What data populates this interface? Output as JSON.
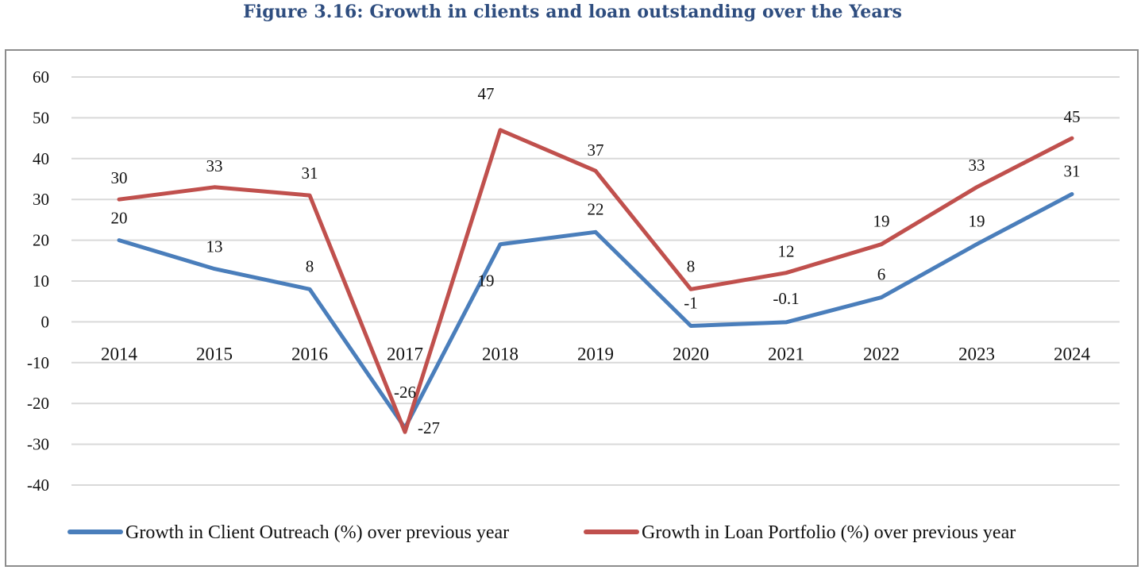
{
  "figure": {
    "title": "Figure 3.16: Growth in clients and loan outstanding over the Years"
  },
  "chart_data": {
    "type": "line",
    "title": "Figure 3.16: Growth in clients and loan outstanding over the Years",
    "xlabel": "",
    "ylabel": "",
    "ylim": [
      -40,
      60
    ],
    "yticks": [
      60,
      50,
      40,
      30,
      20,
      10,
      0,
      -10,
      -20,
      -30,
      -40
    ],
    "ytick_labels": [
      "60",
      "50",
      "40",
      "30",
      "20",
      "10",
      "0",
      "-10",
      "-20",
      "-30",
      "-40"
    ],
    "grid": true,
    "legend_position": "bottom",
    "categories": [
      "2014",
      "2015",
      "2016",
      "2017",
      "2018",
      "2019",
      "2020",
      "2021",
      "2022",
      "2023",
      "2024"
    ],
    "series": [
      {
        "name": "Growth in Client Outreach (%) over previous year",
        "color": "#4A7EBB",
        "values": [
          20,
          13,
          8,
          -26,
          19,
          22,
          -1,
          -0.1,
          6,
          19,
          31.3
        ],
        "labels": [
          "20",
          "13",
          "8",
          "-26",
          "19",
          "22",
          "-1",
          "-0.1",
          "6",
          "19",
          "31"
        ]
      },
      {
        "name": "Growth in Loan Portfolio (%) over previous year",
        "color": "#C0504D",
        "values": [
          30,
          33,
          31,
          -27,
          47,
          37,
          8,
          12,
          19,
          33,
          45
        ],
        "labels": [
          "30",
          "33",
          "31",
          "-27",
          "47",
          "37",
          "8",
          "12",
          "19",
          "33",
          "45"
        ]
      }
    ]
  }
}
